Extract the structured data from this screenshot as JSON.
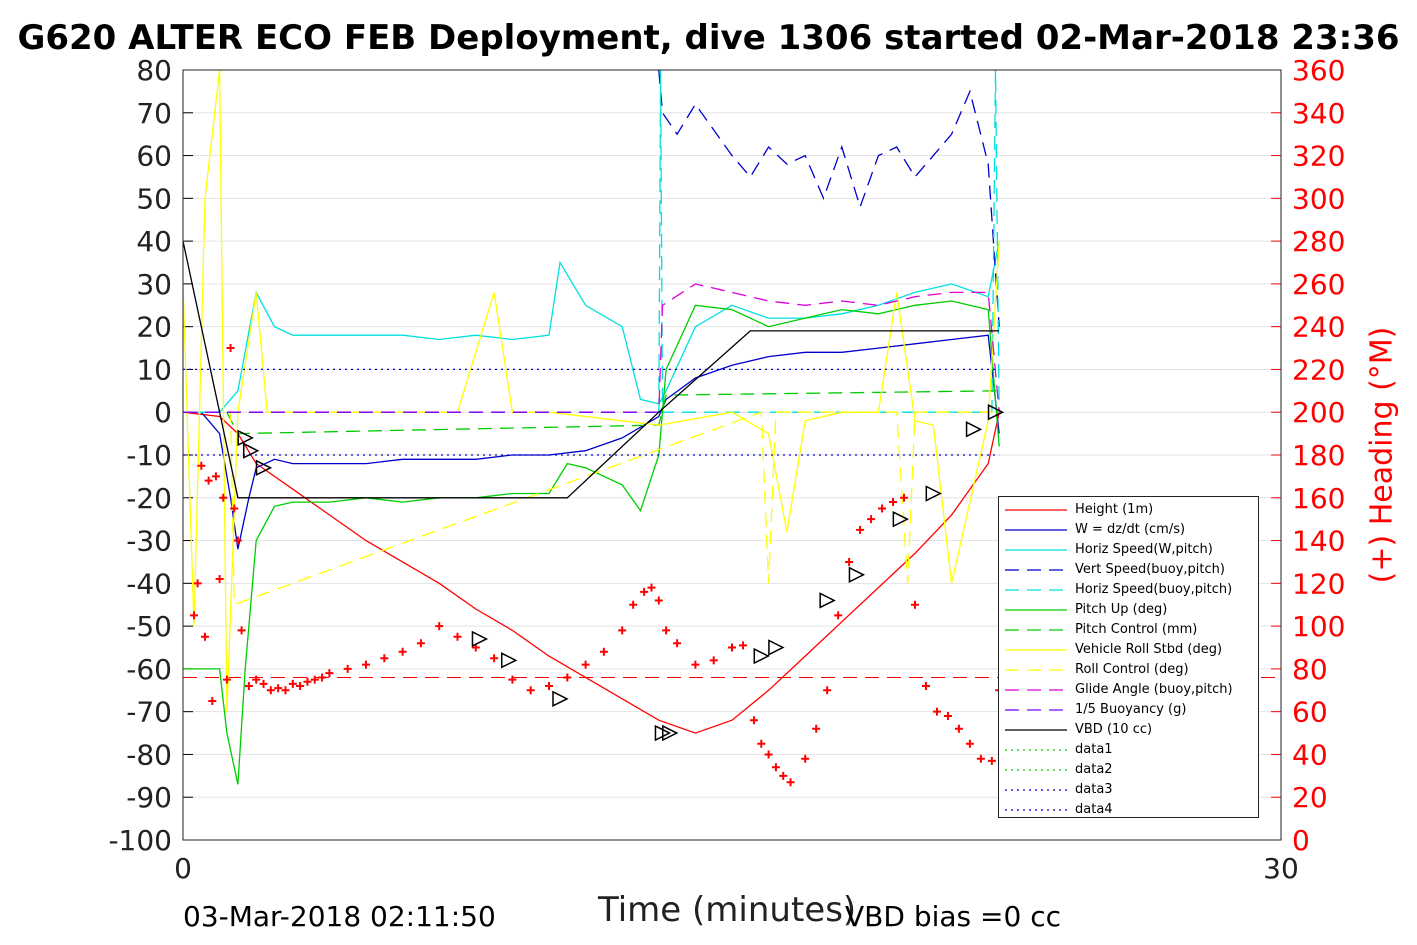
{
  "title": "G620 ALTER ECO FEB Deployment, dive 1306 started 02-Mar-2018 23:36",
  "footer_left": "03-Mar-2018 02:11:50",
  "footer_right": "VBD bias =0 cc",
  "chart_data": {
    "type": "line",
    "xlabel": "Time (minutes)",
    "ylabel": "",
    "ylabel_right": "(+) Heading (°M)",
    "xlim": [
      0,
      30
    ],
    "ylim": [
      -100,
      80
    ],
    "ylim_right": [
      0,
      360
    ],
    "x_ticks": [
      "0",
      "30"
    ],
    "y_ticks": [
      "80",
      "70",
      "60",
      "50",
      "40",
      "30",
      "20",
      "10",
      "0",
      "-10",
      "-20",
      "-30",
      "-40",
      "-50",
      "-60",
      "-70",
      "-80",
      "-90",
      "-100"
    ],
    "y_ticks_right": [
      "360",
      "340",
      "320",
      "300",
      "280",
      "260",
      "240",
      "220",
      "200",
      "180",
      "160",
      "140",
      "120",
      "100",
      "80",
      "60",
      "40",
      "20",
      "0"
    ],
    "grid": true,
    "legend_position": "lower-right",
    "series": [
      {
        "name": "Height (1m)",
        "color": "#ff0000",
        "style": "solid",
        "x": [
          0,
          1,
          1.5,
          2,
          3,
          4,
          5,
          6,
          7,
          8,
          9,
          10,
          11,
          12,
          13,
          14,
          15,
          16,
          17,
          18,
          19,
          20,
          21,
          22,
          22.3
        ],
        "y": [
          0,
          -1,
          -5,
          -12,
          -18,
          -24,
          -30,
          -35,
          -40,
          -46,
          -51,
          -57,
          -62,
          -67,
          -72,
          -75,
          -72,
          -65,
          -57,
          -49,
          -41,
          -33,
          -24,
          -12,
          0
        ]
      },
      {
        "name": "W = dz/dt (cm/s)",
        "color": "#0000cc",
        "style": "solid",
        "x": [
          0,
          0.5,
          1,
          1.3,
          1.5,
          1.8,
          2,
          2.5,
          3,
          4,
          5,
          6,
          7,
          8,
          9,
          10,
          11,
          12,
          13,
          13.2,
          14,
          15,
          16,
          17,
          18,
          19,
          20,
          21,
          22,
          22.3
        ],
        "y": [
          0,
          0,
          -5,
          -20,
          -32,
          -20,
          -13,
          -11,
          -12,
          -12,
          -12,
          -11,
          -11,
          -11,
          -10,
          -10,
          -9,
          -6,
          -1,
          3,
          8,
          11,
          13,
          14,
          14,
          15,
          16,
          17,
          18,
          -5
        ]
      },
      {
        "name": "Horiz Speed(W,pitch)",
        "color": "#00e0e0",
        "style": "solid",
        "x": [
          0,
          1,
          1.5,
          2,
          2.5,
          3,
          4,
          5,
          6,
          7,
          8,
          9,
          10,
          10.3,
          11,
          12,
          12.5,
          13,
          13.2,
          14,
          15,
          16,
          17,
          18,
          19,
          20,
          21,
          22,
          22.3
        ],
        "y": [
          0,
          0,
          5,
          28,
          20,
          18,
          18,
          18,
          18,
          17,
          18,
          17,
          18,
          35,
          25,
          20,
          3,
          2,
          5,
          20,
          25,
          22,
          22,
          23,
          25,
          28,
          30,
          27,
          40
        ]
      },
      {
        "name": "Vert Speed(buoy,pitch)",
        "color": "#0000cc",
        "style": "dashed",
        "x": [
          13,
          13.1,
          13.5,
          14,
          14.5,
          15,
          15.5,
          16,
          16.5,
          17,
          17.5,
          18,
          18.5,
          19,
          19.5,
          20,
          20.5,
          21,
          21.5,
          22,
          22.3
        ],
        "y": [
          80,
          70,
          65,
          72,
          66,
          60,
          55,
          62,
          58,
          60,
          50,
          62,
          48,
          60,
          62,
          55,
          60,
          65,
          75,
          58,
          20
        ]
      },
      {
        "name": "Horiz Speed(buoy,pitch)",
        "color": "#00e0e0",
        "style": "dashed",
        "x": [
          13,
          13.05,
          13.1,
          22.1,
          22.2,
          22.3
        ],
        "y": [
          0,
          80,
          0,
          0,
          80,
          0
        ]
      },
      {
        "name": "Pitch Up (deg)",
        "color": "#00cc00",
        "style": "solid",
        "x": [
          0,
          1,
          1.2,
          1.5,
          1.7,
          2,
          2.5,
          3,
          4,
          5,
          6,
          7,
          8,
          9,
          10,
          10.5,
          11,
          12,
          12.5,
          13,
          13.2,
          14,
          15,
          16,
          17,
          18,
          19,
          20,
          21,
          22,
          22.3
        ],
        "y": [
          -60,
          -60,
          -75,
          -87,
          -60,
          -30,
          -22,
          -21,
          -21,
          -20,
          -21,
          -20,
          -20,
          -19,
          -19,
          -12,
          -13,
          -17,
          -23,
          -10,
          10,
          25,
          24,
          20,
          22,
          24,
          23,
          25,
          26,
          24,
          -8
        ]
      },
      {
        "name": "Pitch Control (mm)",
        "color": "#00cc00",
        "style": "dashed",
        "x": [
          0,
          1.2,
          1.5,
          13,
          13.2,
          22.3
        ],
        "y": [
          0,
          0,
          -5,
          -3,
          4,
          5
        ]
      },
      {
        "name": "Vehicle Roll Stbd (deg)",
        "color": "#ffff00",
        "style": "solid",
        "x": [
          0,
          0.3,
          0.6,
          1,
          1.2,
          1.5,
          2,
          2.3,
          2.8,
          4,
          6,
          7.5,
          8.5,
          9,
          10,
          12,
          13,
          15,
          16,
          16.5,
          17,
          18,
          19,
          19.5,
          20,
          20.5,
          21,
          22,
          22.3
        ],
        "y": [
          30,
          -50,
          50,
          80,
          -70,
          0,
          28,
          0,
          0,
          0,
          0,
          0,
          28,
          0,
          0,
          -2,
          -3,
          0,
          -5,
          -28,
          -2,
          0,
          0,
          28,
          -2,
          -3,
          -40,
          -2,
          40
        ]
      },
      {
        "name": "Roll Control (deg)",
        "color": "#ffff00",
        "style": "dashed",
        "x": [
          0,
          1.3,
          1.4,
          15.8,
          16,
          16.2,
          19.5,
          19.8,
          20,
          22.3
        ],
        "y": [
          0,
          0,
          -45,
          0,
          -40,
          0,
          0,
          -40,
          0,
          0
        ]
      },
      {
        "name": "Glide Angle (buoy,pitch)",
        "color": "#dd00dd",
        "style": "dashed",
        "x": [
          0,
          13,
          13.1,
          14,
          15,
          16,
          17,
          18,
          19,
          20,
          21,
          22,
          22.3
        ],
        "y": [
          0,
          0,
          25,
          30,
          28,
          26,
          25,
          26,
          25,
          27,
          28,
          28,
          0
        ]
      },
      {
        "name": "1/5 Buoyancy (g)",
        "color": "#7a00ff",
        "style": "dashed",
        "x": [
          0,
          13
        ],
        "y": [
          0,
          0
        ]
      },
      {
        "name": "VBD (10 cc)",
        "color": "#000000",
        "style": "solid",
        "x": [
          0,
          1.5,
          10.5,
          13,
          15.5,
          22.3
        ],
        "y": [
          40,
          -20,
          -20,
          0,
          19,
          19
        ]
      },
      {
        "name": "data1",
        "color": "#00cc00",
        "style": "dotted",
        "x": [],
        "y": []
      },
      {
        "name": "data2",
        "color": "#00cc00",
        "style": "dotted",
        "x": [],
        "y": []
      },
      {
        "name": "data3",
        "color": "#0000cc",
        "style": "dotted",
        "x": [
          0,
          22.3
        ],
        "y": [
          10,
          10
        ]
      },
      {
        "name": "data4",
        "color": "#0000cc",
        "style": "dotted",
        "x": [
          0,
          22.3
        ],
        "y": [
          -10,
          -10
        ]
      }
    ],
    "reference_line": {
      "y_right": 76,
      "color": "#ff0000",
      "style": "dashed"
    },
    "heading_markers": {
      "color": "#ff0000",
      "marker": "+",
      "x": [
        0.3,
        0.4,
        0.5,
        0.6,
        0.7,
        0.8,
        0.9,
        1.0,
        1.1,
        1.2,
        1.3,
        1.4,
        1.5,
        1.6,
        1.8,
        2,
        2.2,
        2.4,
        2.6,
        2.8,
        3,
        3.2,
        3.4,
        3.6,
        3.8,
        4,
        4.5,
        5,
        5.5,
        6,
        6.5,
        7,
        7.5,
        8,
        8.5,
        9,
        9.5,
        10,
        10.5,
        11,
        11.5,
        12,
        12.3,
        12.6,
        12.8,
        13,
        13.2,
        13.5,
        14,
        14.5,
        15,
        15.3,
        15.6,
        15.8,
        16,
        16.2,
        16.4,
        16.6,
        17,
        17.3,
        17.6,
        17.9,
        18.2,
        18.5,
        18.8,
        19.1,
        19.4,
        19.7,
        20,
        20.3,
        20.6,
        20.9,
        21.2,
        21.5,
        21.8,
        22.1,
        22.3
      ],
      "y": [
        105,
        120,
        175,
        95,
        168,
        65,
        170,
        122,
        160,
        75,
        230,
        155,
        140,
        98,
        72,
        75,
        73,
        70,
        71,
        70,
        73,
        72,
        74,
        75,
        76,
        78,
        80,
        82,
        85,
        88,
        92,
        100,
        95,
        90,
        85,
        75,
        70,
        72,
        76,
        82,
        88,
        98,
        110,
        116,
        118,
        112,
        98,
        92,
        82,
        84,
        90,
        91,
        56,
        45,
        40,
        34,
        30,
        27,
        38,
        52,
        70,
        105,
        130,
        145,
        150,
        155,
        158,
        160,
        110,
        72,
        60,
        58,
        52,
        45,
        38,
        37,
        70
      ]
    },
    "triangle_markers": {
      "color": "#000000",
      "x": [
        1.7,
        1.85,
        2.2,
        8.1,
        8.9,
        10.3,
        13.1,
        13.3,
        15.8,
        16.2,
        17.6,
        18.4,
        19.6,
        20.5,
        21.6,
        22.2
      ],
      "y": [
        -6,
        -9,
        -13,
        -53,
        -58,
        -67,
        -75,
        -75,
        -57,
        -55,
        -44,
        -38,
        -25,
        -19,
        -4,
        0
      ]
    }
  }
}
